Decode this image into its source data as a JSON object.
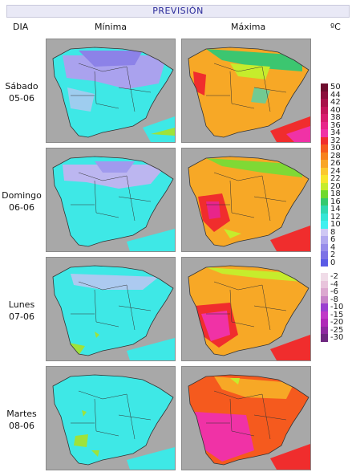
{
  "header": {
    "title": "PREVISIÓN"
  },
  "columns": {
    "day": "DIA",
    "min": "Mínima",
    "max": "Máxima",
    "unit": "ºC"
  },
  "days": [
    {
      "name": "Sábado",
      "date": "05-06"
    },
    {
      "name": "Domingo",
      "date": "06-06"
    },
    {
      "name": "Lunes",
      "date": "07-06"
    },
    {
      "name": "Martes",
      "date": "08-06"
    }
  ],
  "legend": [
    {
      "label": "50",
      "color": "#6e0d2e"
    },
    {
      "label": "44",
      "color": "#8c0f3c"
    },
    {
      "label": "42",
      "color": "#a8124a"
    },
    {
      "label": "40",
      "color": "#c3155a"
    },
    {
      "label": "38",
      "color": "#d81c6e"
    },
    {
      "label": "36",
      "color": "#e8258a"
    },
    {
      "label": "34",
      "color": "#f032a6"
    },
    {
      "label": "32",
      "color": "#f02d2d"
    },
    {
      "label": "30",
      "color": "#f55a1e"
    },
    {
      "label": "28",
      "color": "#f7821e"
    },
    {
      "label": "26",
      "color": "#f9a526"
    },
    {
      "label": "24",
      "color": "#fbc82d"
    },
    {
      "label": "22",
      "color": "#f8e62b"
    },
    {
      "label": "20",
      "color": "#c6ec2c"
    },
    {
      "label": "18",
      "color": "#6fd92f"
    },
    {
      "label": "16",
      "color": "#34c96e"
    },
    {
      "label": "14",
      "color": "#30d8b0"
    },
    {
      "label": "12",
      "color": "#34e6d6"
    },
    {
      "label": "10",
      "color": "#40f0f0"
    },
    {
      "label": "8",
      "color": "#cfc8f4"
    },
    {
      "label": "6",
      "color": "#b2a9ef"
    },
    {
      "label": "4",
      "color": "#978cea"
    },
    {
      "label": "2",
      "color": "#7d72e6"
    },
    {
      "label": "0",
      "color": "#5a5be6"
    },
    {
      "label": "-2",
      "color": "#f0dce8"
    },
    {
      "label": "-4",
      "color": "#e8c4dc"
    },
    {
      "label": "-6",
      "color": "#dca8d0"
    },
    {
      "label": "-8",
      "color": "#c884c8"
    },
    {
      "label": "-10",
      "color": "#9b3fd0"
    },
    {
      "label": "-15",
      "color": "#c03ac8"
    },
    {
      "label": "-20",
      "color": "#b02ab8"
    },
    {
      "label": "-25",
      "color": "#8e2aa0"
    },
    {
      "label": "-30",
      "color": "#6e2880"
    }
  ]
}
